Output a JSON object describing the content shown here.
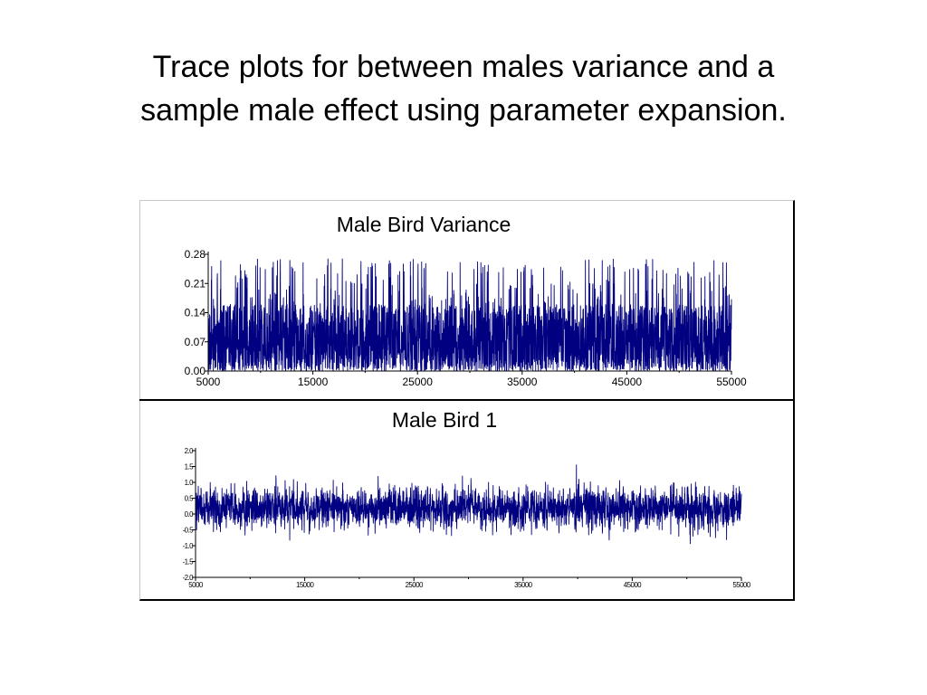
{
  "slide": {
    "title_line1": "Trace plots for between males variance and a",
    "title_line2": "sample male effect using parameter expansion."
  },
  "colors": {
    "trace": "#000080",
    "axis": "#000000",
    "frame_light": "#c8c8c8"
  },
  "chart_data": [
    {
      "type": "line",
      "title": "Male Bird Variance",
      "xlabel": "",
      "ylabel": "",
      "xlim": [
        5000,
        55000
      ],
      "ylim": [
        0.0,
        0.28
      ],
      "x_ticks": [
        5000,
        15000,
        25000,
        35000,
        45000,
        55000
      ],
      "x_tick_labels": [
        "5000",
        "15000",
        "25000",
        "35000",
        "45000",
        "55000"
      ],
      "y_ticks": [
        0.0,
        0.07,
        0.14,
        0.21,
        0.28
      ],
      "y_tick_labels": [
        "0.00",
        "0.07",
        "0.14",
        "0.21",
        "0.28"
      ],
      "grid": false,
      "series": [
        {
          "description": "MCMC trace, iterations 5000-55000, values mostly 0.00-0.14 with frequent spikes to ~0.27",
          "x_range": [
            5000,
            55000
          ],
          "approx_mean": 0.07,
          "approx_min": 0.0,
          "approx_max": 0.27
        }
      ]
    },
    {
      "type": "line",
      "title": "Male Bird 1",
      "xlabel": "",
      "ylabel": "",
      "xlim": [
        5000,
        55000
      ],
      "ylim": [
        -2.0,
        2.0
      ],
      "x_ticks": [
        5000,
        15000,
        25000,
        35000,
        45000,
        55000
      ],
      "x_tick_labels": [
        "5000",
        "15000",
        "25000",
        "35000",
        "45000",
        "55000"
      ],
      "y_ticks": [
        -2.0,
        -1.5,
        -1.0,
        -0.5,
        0.0,
        0.5,
        1.0,
        1.5,
        2.0
      ],
      "y_tick_labels": [
        "-2.0",
        "-1.5",
        "-1.0",
        "-0.5",
        "0.0",
        "0.5",
        "1.0",
        "1.5",
        "2.0"
      ],
      "grid": false,
      "series": [
        {
          "description": "MCMC trace, iterations 5000-55000, fluctuating around ~0.2 mostly between -0.5 and 1.0",
          "x_range": [
            5000,
            55000
          ],
          "approx_mean": 0.2,
          "approx_min": -1.1,
          "approx_max": 1.5
        }
      ]
    }
  ]
}
